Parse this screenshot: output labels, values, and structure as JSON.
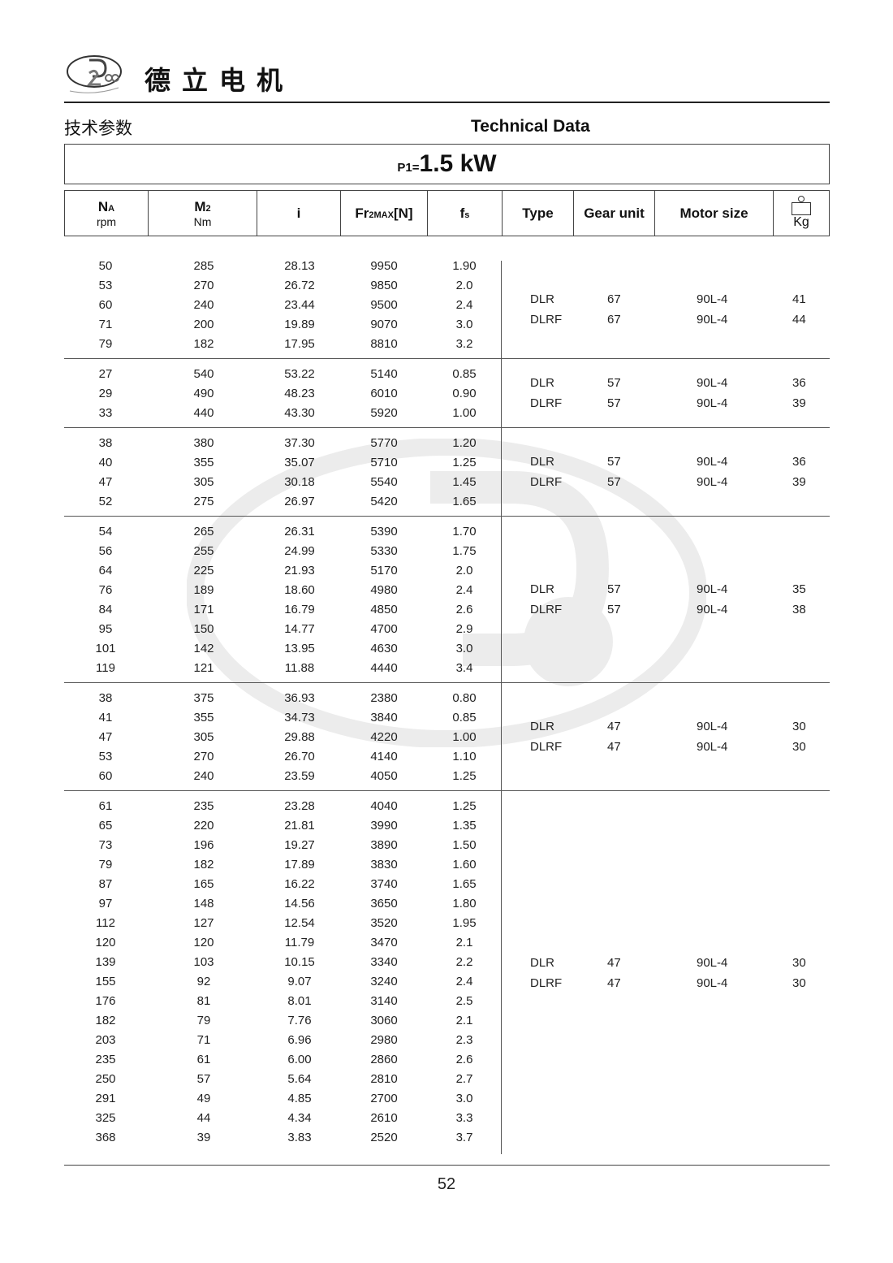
{
  "header": {
    "brand": "德立电机",
    "logo_text": "De Li Gear Motor",
    "cn_title": "技术参数",
    "en_title": "Technical Data"
  },
  "power": {
    "label": "P1=",
    "sub": "1",
    "value": "1.5 kW"
  },
  "columns": {
    "na": "N",
    "na_sub": "A",
    "na_unit": "rpm",
    "m2": "M",
    "m2_sub": "2",
    "m2_unit": "Nm",
    "i": "i",
    "fr": "Fr",
    "fr_sub": "2MAX",
    "fr_unit": "[N]",
    "fs": "f",
    "fs_sub": "s",
    "type": "Type",
    "gear_unit": "Gear unit",
    "motor_size": "Motor size",
    "kg": "Kg"
  },
  "groups": [
    {
      "rows": [
        [
          "50",
          "285",
          "28.13",
          "9950",
          "1.90"
        ],
        [
          "53",
          "270",
          "26.72",
          "9850",
          "2.0"
        ],
        [
          "60",
          "240",
          "23.44",
          "9500",
          "2.4"
        ],
        [
          "71",
          "200",
          "19.89",
          "9070",
          "3.0"
        ],
        [
          "79",
          "182",
          "17.95",
          "8810",
          "3.2"
        ]
      ],
      "models": [
        [
          "DLR",
          "67",
          "90L-4",
          "41"
        ],
        [
          "DLRF",
          "67",
          "90L-4",
          "44"
        ]
      ]
    },
    {
      "rows": [
        [
          "27",
          "540",
          "53.22",
          "5140",
          "0.85"
        ],
        [
          "29",
          "490",
          "48.23",
          "6010",
          "0.90"
        ],
        [
          "33",
          "440",
          "43.30",
          "5920",
          "1.00"
        ]
      ],
      "models": [
        [
          "DLR",
          "57",
          "90L-4",
          "36"
        ],
        [
          "DLRF",
          "57",
          "90L-4",
          "39"
        ]
      ]
    },
    {
      "rows": [
        [
          "38",
          "380",
          "37.30",
          "5770",
          "1.20"
        ],
        [
          "40",
          "355",
          "35.07",
          "5710",
          "1.25"
        ],
        [
          "47",
          "305",
          "30.18",
          "5540",
          "1.45"
        ],
        [
          "52",
          "275",
          "26.97",
          "5420",
          "1.65"
        ]
      ],
      "models": [
        [
          "DLR",
          "57",
          "90L-4",
          "36"
        ],
        [
          "DLRF",
          "57",
          "90L-4",
          "39"
        ]
      ]
    },
    {
      "rows": [
        [
          "54",
          "265",
          "26.31",
          "5390",
          "1.70"
        ],
        [
          "56",
          "255",
          "24.99",
          "5330",
          "1.75"
        ],
        [
          "64",
          "225",
          "21.93",
          "5170",
          "2.0"
        ],
        [
          "76",
          "189",
          "18.60",
          "4980",
          "2.4"
        ],
        [
          "84",
          "171",
          "16.79",
          "4850",
          "2.6"
        ],
        [
          "95",
          "150",
          "14.77",
          "4700",
          "2.9"
        ],
        [
          "101",
          "142",
          "13.95",
          "4630",
          "3.0"
        ],
        [
          "119",
          "121",
          "11.88",
          "4440",
          "3.4"
        ]
      ],
      "models": [
        [
          "DLR",
          "57",
          "90L-4",
          "35"
        ],
        [
          "DLRF",
          "57",
          "90L-4",
          "38"
        ]
      ]
    },
    {
      "rows": [
        [
          "38",
          "375",
          "36.93",
          "2380",
          "0.80"
        ],
        [
          "41",
          "355",
          "34.73",
          "3840",
          "0.85"
        ],
        [
          "47",
          "305",
          "29.88",
          "4220",
          "1.00"
        ],
        [
          "53",
          "270",
          "26.70",
          "4140",
          "1.10"
        ],
        [
          "60",
          "240",
          "23.59",
          "4050",
          "1.25"
        ]
      ],
      "models": [
        [
          "DLR",
          "47",
          "90L-4",
          "30"
        ],
        [
          "DLRF",
          "47",
          "90L-4",
          "30"
        ]
      ]
    },
    {
      "rows": [
        [
          "61",
          "235",
          "23.28",
          "4040",
          "1.25"
        ],
        [
          "65",
          "220",
          "21.81",
          "3990",
          "1.35"
        ],
        [
          "73",
          "196",
          "19.27",
          "3890",
          "1.50"
        ],
        [
          "79",
          "182",
          "17.89",
          "3830",
          "1.60"
        ],
        [
          "87",
          "165",
          "16.22",
          "3740",
          "1.65"
        ],
        [
          "97",
          "148",
          "14.56",
          "3650",
          "1.80"
        ],
        [
          "112",
          "127",
          "12.54",
          "3520",
          "1.95"
        ],
        [
          "120",
          "120",
          "11.79",
          "3470",
          "2.1"
        ],
        [
          "139",
          "103",
          "10.15",
          "3340",
          "2.2"
        ],
        [
          "155",
          "92",
          "9.07",
          "3240",
          "2.4"
        ],
        [
          "176",
          "81",
          "8.01",
          "3140",
          "2.5"
        ],
        [
          "182",
          "79",
          "7.76",
          "3060",
          "2.1"
        ],
        [
          "203",
          "71",
          "6.96",
          "2980",
          "2.3"
        ],
        [
          "235",
          "61",
          "6.00",
          "2860",
          "2.6"
        ],
        [
          "250",
          "57",
          "5.64",
          "2810",
          "2.7"
        ],
        [
          "291",
          "49",
          "4.85",
          "2700",
          "3.0"
        ],
        [
          "325",
          "44",
          "4.34",
          "2610",
          "3.3"
        ],
        [
          "368",
          "39",
          "3.83",
          "2520",
          "3.7"
        ]
      ],
      "models": [
        [
          "DLR",
          "47",
          "90L-4",
          "30"
        ],
        [
          "DLRF",
          "47",
          "90L-4",
          "30"
        ]
      ]
    }
  ],
  "page_number": "52"
}
